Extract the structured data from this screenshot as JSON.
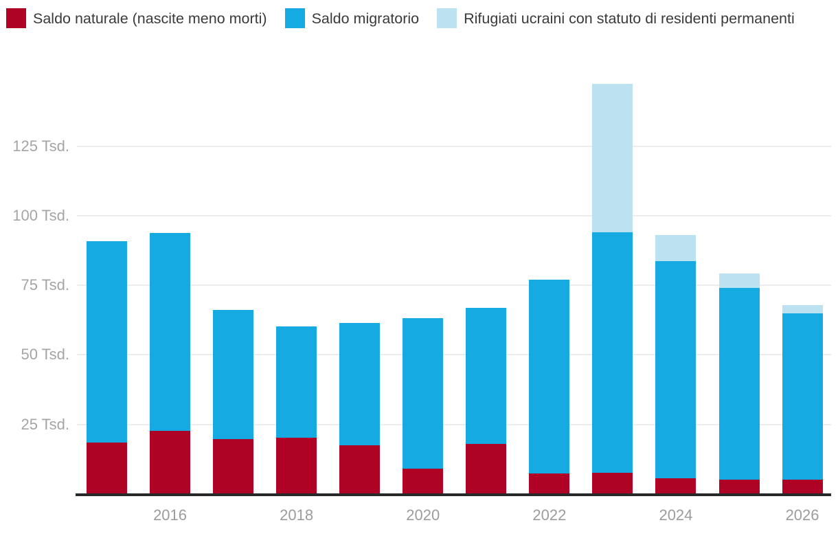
{
  "legend": {
    "items": [
      {
        "label": "Saldo naturale (nascite meno morti)",
        "color": "#af0326"
      },
      {
        "label": "Saldo migratorio",
        "color": "#15aae1"
      },
      {
        "label": "Rifugiati ucraini con statuto di residenti permanenti",
        "color": "#bce2f1"
      }
    ]
  },
  "chart_data": {
    "type": "bar",
    "stacked": true,
    "title": "",
    "xlabel": "",
    "ylabel": "",
    "unit": "Tsd.",
    "grid": true,
    "legend_position": "top-left",
    "ylim": [
      0,
      150
    ],
    "x": [
      2015,
      2016,
      2017,
      2018,
      2019,
      2020,
      2021,
      2022,
      2023,
      2024,
      2025,
      2026
    ],
    "x_tick_labels": [
      "2016",
      "2018",
      "2020",
      "2022",
      "2024",
      "2026"
    ],
    "y_ticks": [
      25,
      50,
      75,
      100,
      125
    ],
    "y_tick_labels": [
      "25 Tsd.",
      "50 Tsd.",
      "75 Tsd.",
      "100 Tsd.",
      "125 Tsd."
    ],
    "series": [
      {
        "name": "Saldo naturale (nascite meno morti)",
        "key": "saldo-naturale",
        "color": "#af0326",
        "values": [
          18.4,
          22.7,
          19.8,
          20.2,
          17.6,
          9.2,
          18.0,
          7.3,
          7.7,
          5.6,
          5.2,
          5.3
        ]
      },
      {
        "name": "Saldo migratorio",
        "key": "saldo-migratorio",
        "color": "#15aae1",
        "values": [
          72.3,
          71.2,
          46.4,
          40.0,
          43.8,
          54.0,
          49.0,
          69.7,
          86.3,
          78.0,
          68.8,
          59.5
        ]
      },
      {
        "name": "Rifugiati ucraini con statuto di residenti permanenti",
        "key": "rifugiati-ucraini",
        "color": "#bce2f1",
        "values": [
          0,
          0,
          0,
          0,
          0,
          0,
          0,
          0,
          53.4,
          9.5,
          5.3,
          3.1
        ]
      }
    ],
    "totals": [
      90.7,
      93.9,
      66.2,
      60.2,
      61.4,
      63.2,
      67.0,
      77.0,
      147.4,
      93.1,
      79.3,
      67.9
    ]
  },
  "colors": {
    "background": "#ffffff",
    "gridline": "#ececec",
    "axis_line": "#26282a",
    "tick_label": "#a5a5a5",
    "legend_text": "#3a3a3a"
  }
}
